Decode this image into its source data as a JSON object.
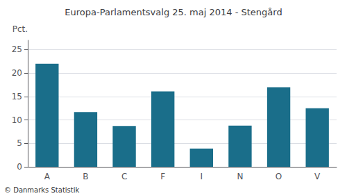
{
  "chart_data": {
    "type": "bar",
    "title": "Europa-Parlamentsvalg 25. maj 2014 - Stengård",
    "ylabel": "Pct.",
    "annotations": [
      "© Danmarks Statistik"
    ],
    "categories": [
      "A",
      "B",
      "C",
      "F",
      "I",
      "N",
      "O",
      "V"
    ],
    "values": [
      22.0,
      11.7,
      8.7,
      16.1,
      3.9,
      8.8,
      17.0,
      12.5
    ],
    "color": "#1a6e8a",
    "ylim": [
      0,
      27
    ],
    "yticks": [
      0,
      5,
      10,
      15,
      20,
      25
    ],
    "grid": true
  }
}
